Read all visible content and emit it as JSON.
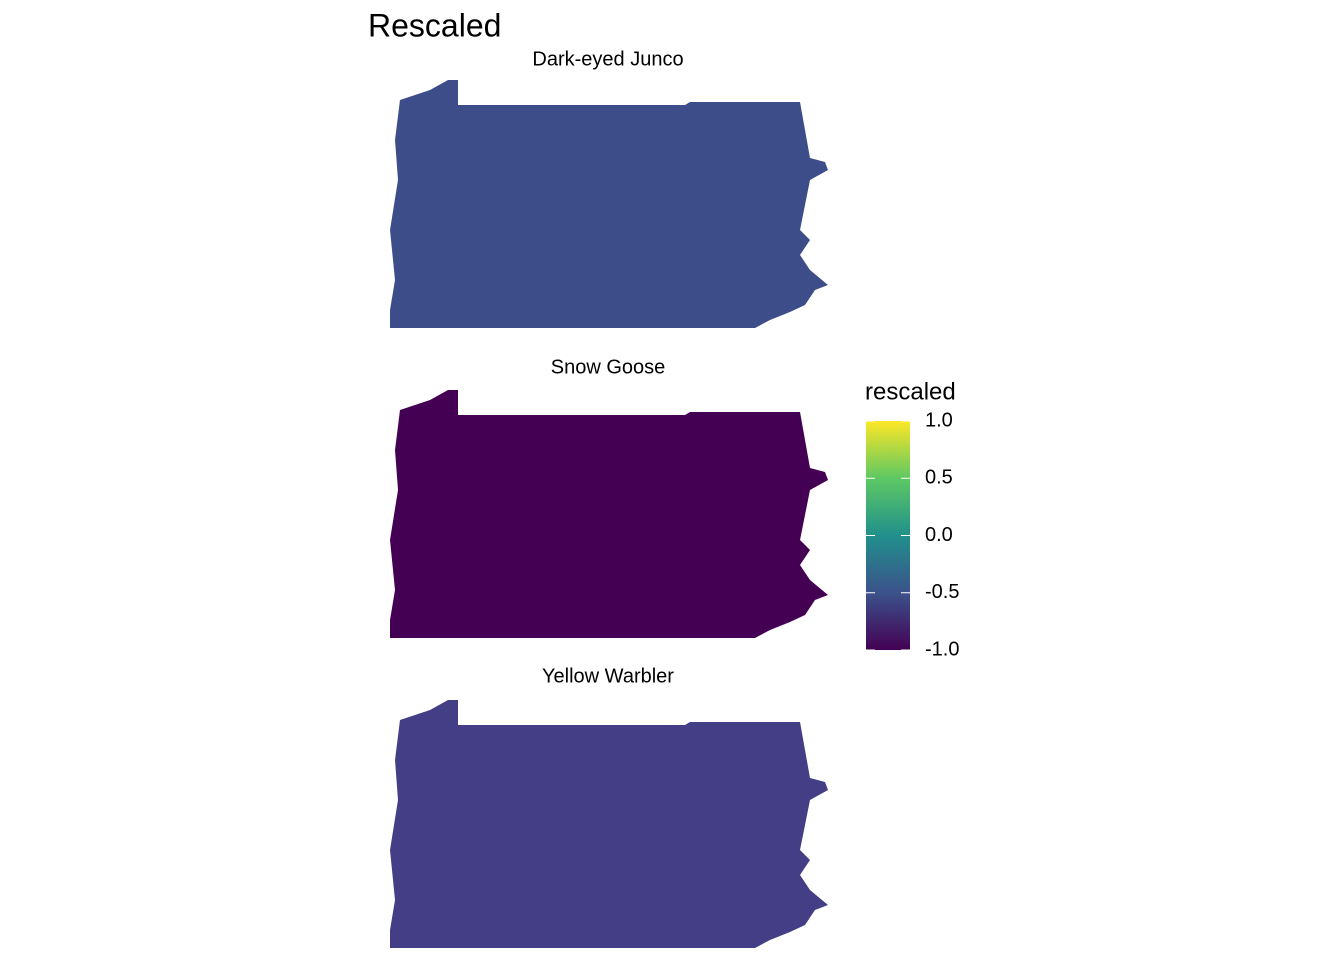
{
  "chart_data": {
    "type": "raster-map",
    "title": "Rescaled",
    "facets": [
      {
        "title": "Dark-eyed Junco",
        "color": "#3d4d8a"
      },
      {
        "title": "Snow Goose",
        "color": "#440154"
      },
      {
        "title": "Yellow Warbler",
        "color": "#433e85"
      }
    ],
    "legend": {
      "title": "rescaled",
      "colors": [
        "#440154",
        "#3b528b",
        "#21908c",
        "#5dc863",
        "#fde725"
      ],
      "lim": [
        -1,
        1
      ],
      "ticks": [
        {
          "value": 1,
          "label": "1.0"
        },
        {
          "value": 0.5,
          "label": "0.5"
        },
        {
          "value": 0,
          "label": "0.0"
        },
        {
          "value": -0.5,
          "label": "-0.5"
        },
        {
          "value": -1,
          "label": "-1.0"
        }
      ]
    }
  }
}
